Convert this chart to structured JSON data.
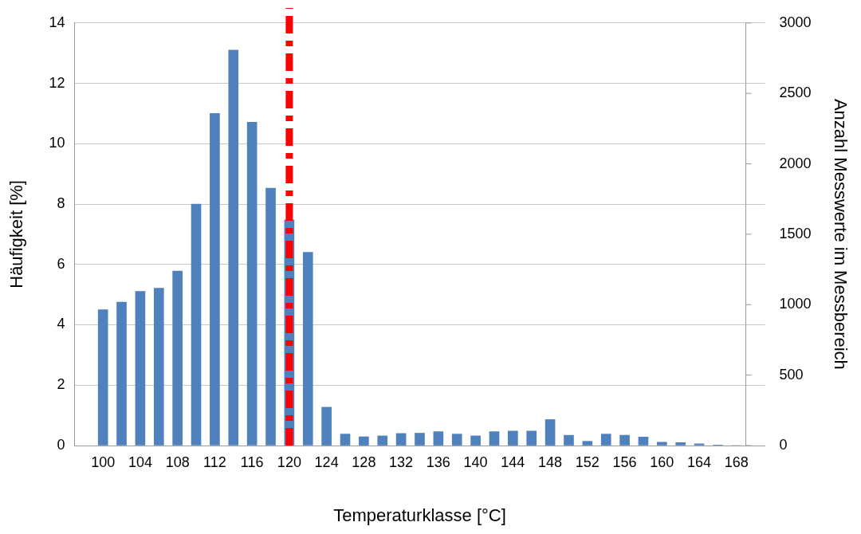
{
  "chart_data": {
    "type": "bar",
    "xlabel": "Temperaturklasse [°C]",
    "ylabel": "Häufigkeit [%]",
    "y2label": "Anzahl Messwerte im Messbereich",
    "x": [
      100,
      102,
      104,
      106,
      108,
      110,
      112,
      114,
      116,
      118,
      120,
      122,
      124,
      126,
      128,
      130,
      132,
      134,
      136,
      138,
      140,
      142,
      144,
      146,
      148,
      150,
      152,
      154,
      156,
      158,
      160,
      162,
      164,
      166,
      168
    ],
    "series": [
      {
        "color": "#4f81bd",
        "values": [
          4.5,
          4.75,
          5.11,
          5.21,
          5.78,
          8.0,
          11.0,
          13.1,
          10.71,
          8.53,
          7.48,
          6.4,
          1.27,
          0.38,
          0.29,
          0.32,
          0.4,
          0.41,
          0.46,
          0.38,
          0.32,
          0.46,
          0.48,
          0.48,
          0.86,
          0.34,
          0.14,
          0.38,
          0.34,
          0.28,
          0.11,
          0.1,
          0.06,
          0.01,
          0
        ]
      }
    ],
    "xlim": [
      99,
      169
    ],
    "xticks": [
      100,
      104,
      108,
      112,
      116,
      120,
      124,
      128,
      132,
      136,
      140,
      144,
      148,
      152,
      156,
      160,
      164,
      168
    ],
    "ylim": [
      0,
      14
    ],
    "yticks": [
      0,
      2,
      4,
      6,
      8,
      10,
      12,
      14
    ],
    "y2lim": [
      0,
      3000
    ],
    "y2ticks": [
      0,
      500,
      1000,
      1500,
      2000,
      2500,
      3000
    ],
    "ref_lines": [
      {
        "axis": "x",
        "value": 120,
        "color": "#ff0000",
        "line_style": "dashdot"
      }
    ],
    "grid": "y",
    "legend": false
  }
}
